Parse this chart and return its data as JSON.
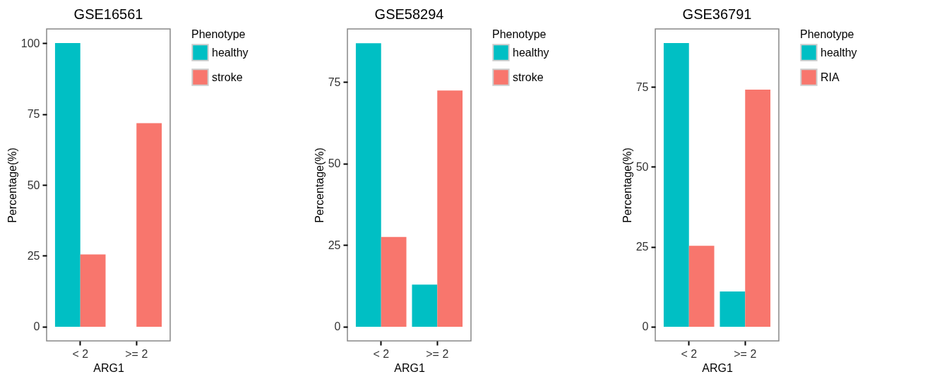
{
  "chart_data": [
    {
      "type": "bar",
      "title": "GSE16561",
      "xlabel": "ARG1",
      "ylabel": "Percentage(%)",
      "categories": [
        "< 2",
        ">= 2"
      ],
      "legend_title": "Phenotype",
      "legend": "right",
      "grid": false,
      "ylim": [
        -5,
        105
      ],
      "yticks": [
        0,
        25,
        50,
        75,
        100
      ],
      "series": [
        {
          "name": "healthy",
          "color": "#00bfc4",
          "values": [
            100,
            0
          ]
        },
        {
          "name": "stroke",
          "color": "#f8766d",
          "values": [
            25.5,
            71.8
          ]
        }
      ]
    },
    {
      "type": "bar",
      "title": "GSE58294",
      "xlabel": "ARG1",
      "ylabel": "Percentage(%)",
      "categories": [
        "< 2",
        ">= 2"
      ],
      "legend_title": "Phenotype",
      "legend": "right",
      "grid": false,
      "ylim": [
        -4.35,
        91.3
      ],
      "yticks": [
        0,
        25,
        50,
        75
      ],
      "series": [
        {
          "name": "healthy",
          "color": "#00bfc4",
          "values": [
            86.9,
            12.9
          ]
        },
        {
          "name": "stroke",
          "color": "#f8766d",
          "values": [
            27.5,
            72.4
          ]
        }
      ]
    },
    {
      "type": "bar",
      "title": "GSE36791",
      "xlabel": "ARG1",
      "ylabel": "Percentage(%)",
      "categories": [
        "< 2",
        ">= 2"
      ],
      "legend_title": "Phenotype",
      "legend": "right",
      "grid": false,
      "ylim": [
        -4.44,
        93.1
      ],
      "yticks": [
        0,
        25,
        50,
        75
      ],
      "series": [
        {
          "name": "healthy",
          "color": "#00bfc4",
          "values": [
            88.7,
            11.0
          ]
        },
        {
          "name": "RIA",
          "color": "#f8766d",
          "values": [
            25.3,
            74.1
          ]
        }
      ]
    }
  ]
}
